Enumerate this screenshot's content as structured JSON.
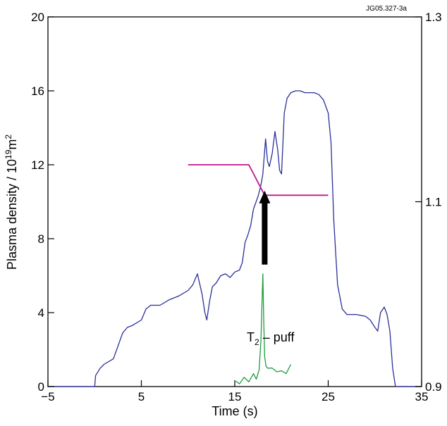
{
  "figure_code": "JG05.327-3a",
  "chart_data": {
    "type": "line",
    "xlabel": "Time (s)",
    "ylabel_text": "Plasma density / 10",
    "ylabel_sup1": "19",
    "ylabel_unit": "m",
    "ylabel_sup2": "2",
    "xlim": [
      -5,
      35
    ],
    "ylim": [
      0,
      20
    ],
    "y2lim": [
      0.9,
      1.3
    ],
    "xticks": [
      -5,
      5,
      15,
      25,
      35
    ],
    "xtick_labels": [
      "−5",
      "5",
      "15",
      "25",
      "35"
    ],
    "yticks": [
      0,
      4,
      8,
      12,
      16,
      20
    ],
    "ytick_labels": [
      "0",
      "4",
      "8",
      "12",
      "16",
      "20"
    ],
    "y2ticks": [
      0.9,
      1.1,
      1.3
    ],
    "y2tick_labels": [
      "0.9",
      "1.1",
      "1.3"
    ],
    "grid": false,
    "annotation_main": "T",
    "annotation_sub": "2",
    "annotation_rest": " – puff",
    "arrow": {
      "x": 18.2,
      "y_from": 6.6,
      "y_to": 10.6
    },
    "series": [
      {
        "color": "#2b2f9a",
        "x": [
          -5,
          0,
          0.1,
          0.6,
          1,
          2,
          2.5,
          3,
          3.5,
          4,
          5,
          5.5,
          6,
          6.5,
          7,
          8,
          8.5,
          9,
          10,
          10.5,
          11,
          11.5,
          11.8,
          12,
          12.3,
          12.6,
          13,
          13.5,
          14,
          14.5,
          15,
          15.5,
          15.8,
          16.1,
          16.4,
          16.7,
          17,
          17.5,
          17.8,
          18,
          18.3,
          18.5,
          18.7,
          19,
          19.3,
          19.6,
          19.8,
          20,
          20.3,
          20.6,
          21,
          21.5,
          22,
          22.5,
          23,
          23.5,
          24,
          24.5,
          25,
          25.3,
          25.6,
          26,
          26.5,
          27,
          28,
          29,
          29.5,
          30,
          30.3,
          30.6,
          31,
          31.3,
          31.6,
          31.9,
          32.2,
          35
        ],
        "values": [
          0,
          0,
          0.6,
          1.0,
          1.2,
          1.5,
          2.2,
          2.9,
          3.2,
          3.3,
          3.6,
          4.2,
          4.4,
          4.4,
          4.4,
          4.7,
          4.8,
          4.9,
          5.2,
          5.5,
          6.1,
          5.0,
          4.0,
          3.6,
          4.6,
          5.4,
          5.6,
          6.0,
          6.1,
          5.9,
          6.2,
          6.3,
          6.7,
          7.8,
          8.2,
          8.7,
          9.6,
          10.3,
          10.9,
          11.5,
          13.4,
          12.2,
          11.9,
          12.6,
          13.8,
          12.8,
          11.7,
          11.5,
          14.8,
          15.6,
          15.9,
          16.0,
          16.0,
          15.9,
          15.9,
          15.9,
          15.8,
          15.5,
          14.8,
          13.2,
          9.0,
          5.5,
          4.2,
          3.9,
          3.9,
          3.8,
          3.6,
          3.2,
          3.0,
          4.0,
          4.3,
          3.9,
          3.0,
          1.0,
          0.0,
          0.0
        ]
      },
      {
        "color": "#c0168e",
        "axis": "right",
        "x": [
          10,
          16.5,
          18.2,
          25
        ],
        "values": [
          1.14,
          1.14,
          1.107,
          1.107
        ]
      },
      {
        "color": "#1d9d3c",
        "x": [
          15.1,
          15.5,
          16,
          16.5,
          17,
          17.3,
          17.6,
          17.8,
          18.0,
          18.1,
          18.2,
          18.35,
          18.5,
          19,
          19.5,
          20,
          20.5,
          21
        ],
        "values": [
          0.3,
          0.15,
          0.5,
          0.25,
          0.7,
          0.4,
          0.9,
          2.5,
          6.1,
          3.5,
          1.6,
          1.1,
          1.0,
          1.0,
          0.8,
          0.85,
          0.7,
          1.2
        ]
      }
    ]
  }
}
